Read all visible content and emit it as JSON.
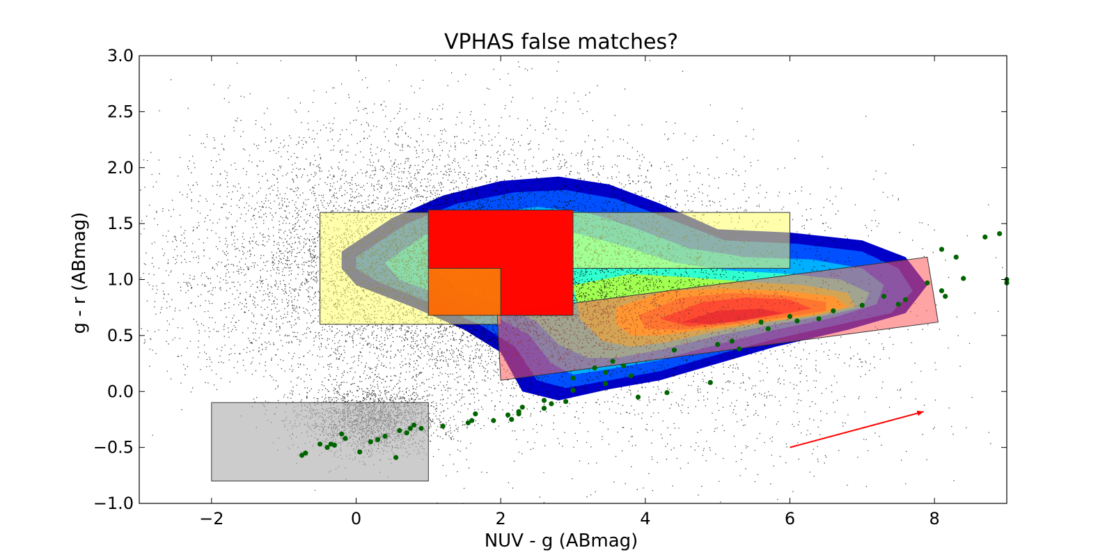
{
  "chart_data": {
    "type": "scatter",
    "title": "VPHAS false matches?",
    "xlabel": "NUV - g (ABmag)",
    "ylabel": "g - r (ABmag)",
    "xlim": [
      -3,
      9
    ],
    "ylim": [
      -1.0,
      3.0
    ],
    "xticks": [
      -2,
      0,
      2,
      4,
      6,
      8
    ],
    "xtick_labels": [
      "−2",
      "0",
      "2",
      "4",
      "6",
      "8"
    ],
    "yticks": [
      -1.0,
      -0.5,
      0.0,
      0.5,
      1.0,
      1.5,
      2.0,
      2.5,
      3.0
    ],
    "ytick_labels": [
      "−1.0",
      "−0.5",
      "0.0",
      "0.5",
      "1.0",
      "1.5",
      "2.0",
      "2.5",
      "3.0"
    ],
    "colors": {
      "background_points": "#000000",
      "highlight_points": "#006400",
      "arrow": "#ff0000",
      "yellow_box": "#ffff66",
      "gray_box": "#b0b0b0",
      "pink_box": "#ff5a5a",
      "orange_box": "#ff6a00",
      "red_box": "#ff0000"
    },
    "contour_levels": [
      {
        "color": "#0000c8",
        "points": [
          [
            -0.2,
            1.25
          ],
          [
            0.5,
            1.55
          ],
          [
            1.2,
            1.75
          ],
          [
            2.0,
            1.88
          ],
          [
            2.8,
            1.92
          ],
          [
            3.5,
            1.85
          ],
          [
            4.2,
            1.68
          ],
          [
            5.0,
            1.45
          ],
          [
            6.0,
            1.42
          ],
          [
            7.0,
            1.35
          ],
          [
            7.6,
            1.2
          ],
          [
            7.9,
            0.95
          ],
          [
            7.6,
            0.7
          ],
          [
            6.8,
            0.55
          ],
          [
            5.8,
            0.4
          ],
          [
            5.0,
            0.25
          ],
          [
            4.2,
            0.1
          ],
          [
            3.5,
            0.02
          ],
          [
            2.8,
            -0.08
          ],
          [
            2.3,
            0.0
          ],
          [
            2.0,
            0.35
          ],
          [
            1.5,
            0.55
          ],
          [
            0.8,
            0.75
          ],
          [
            0.0,
            0.95
          ],
          [
            -0.2,
            1.1
          ]
        ]
      },
      {
        "color": "#0050ff",
        "points": [
          [
            0.0,
            1.2
          ],
          [
            0.7,
            1.5
          ],
          [
            1.4,
            1.68
          ],
          [
            2.2,
            1.78
          ],
          [
            2.9,
            1.8
          ],
          [
            3.6,
            1.72
          ],
          [
            4.3,
            1.55
          ],
          [
            5.1,
            1.35
          ],
          [
            6.1,
            1.32
          ],
          [
            7.0,
            1.25
          ],
          [
            7.5,
            1.1
          ],
          [
            7.7,
            0.9
          ],
          [
            7.4,
            0.7
          ],
          [
            6.7,
            0.6
          ],
          [
            5.8,
            0.47
          ],
          [
            5.0,
            0.33
          ],
          [
            4.2,
            0.18
          ],
          [
            3.5,
            0.1
          ],
          [
            2.9,
            0.03
          ],
          [
            2.5,
            0.1
          ],
          [
            2.2,
            0.4
          ],
          [
            1.7,
            0.6
          ],
          [
            1.0,
            0.8
          ],
          [
            0.3,
            0.98
          ],
          [
            0.0,
            1.1
          ]
        ]
      },
      {
        "color": "#00b0ff",
        "points": [
          [
            0.4,
            1.15
          ],
          [
            1.0,
            1.42
          ],
          [
            1.7,
            1.58
          ],
          [
            2.5,
            1.65
          ],
          [
            3.2,
            1.6
          ],
          [
            3.9,
            1.45
          ],
          [
            4.6,
            1.28
          ],
          [
            5.4,
            1.2
          ],
          [
            6.3,
            1.18
          ],
          [
            7.0,
            1.1
          ],
          [
            7.3,
            0.95
          ],
          [
            7.2,
            0.78
          ],
          [
            6.6,
            0.66
          ],
          [
            5.8,
            0.55
          ],
          [
            5.0,
            0.42
          ],
          [
            4.2,
            0.28
          ],
          [
            3.5,
            0.2
          ],
          [
            3.0,
            0.15
          ],
          [
            2.7,
            0.25
          ],
          [
            2.4,
            0.5
          ],
          [
            1.9,
            0.68
          ],
          [
            1.2,
            0.85
          ],
          [
            0.6,
            1.0
          ]
        ]
      },
      {
        "color": "#30ffd0",
        "points": [
          [
            1.0,
            1.12
          ],
          [
            1.6,
            1.35
          ],
          [
            2.3,
            1.45
          ],
          [
            3.0,
            1.42
          ],
          [
            3.7,
            1.3
          ],
          [
            4.4,
            1.15
          ],
          [
            5.2,
            1.08
          ],
          [
            6.0,
            1.05
          ],
          [
            6.7,
            1.0
          ],
          [
            7.1,
            0.88
          ],
          [
            7.0,
            0.75
          ],
          [
            6.5,
            0.68
          ],
          [
            5.8,
            0.6
          ],
          [
            5.0,
            0.5
          ],
          [
            4.2,
            0.37
          ],
          [
            3.6,
            0.3
          ],
          [
            3.2,
            0.3
          ],
          [
            2.8,
            0.42
          ],
          [
            2.5,
            0.62
          ],
          [
            2.0,
            0.78
          ],
          [
            1.4,
            0.92
          ]
        ]
      },
      {
        "color": "#a0ff50",
        "points": [
          [
            3.0,
            0.95
          ],
          [
            3.8,
            1.05
          ],
          [
            4.6,
            1.02
          ],
          [
            5.4,
            0.98
          ],
          [
            6.2,
            0.95
          ],
          [
            6.8,
            0.88
          ],
          [
            6.9,
            0.76
          ],
          [
            6.4,
            0.68
          ],
          [
            5.7,
            0.62
          ],
          [
            5.0,
            0.54
          ],
          [
            4.3,
            0.44
          ],
          [
            3.8,
            0.4
          ],
          [
            3.4,
            0.45
          ],
          [
            3.1,
            0.65
          ]
        ]
      },
      {
        "color": "#ffe000",
        "points": [
          [
            3.6,
            0.75
          ],
          [
            4.3,
            0.9
          ],
          [
            5.1,
            0.92
          ],
          [
            5.9,
            0.9
          ],
          [
            6.6,
            0.85
          ],
          [
            6.8,
            0.76
          ],
          [
            6.3,
            0.68
          ],
          [
            5.6,
            0.62
          ],
          [
            4.9,
            0.56
          ],
          [
            4.2,
            0.5
          ],
          [
            3.8,
            0.5
          ],
          [
            3.6,
            0.6
          ]
        ]
      },
      {
        "color": "#ff9a00",
        "points": [
          [
            3.9,
            0.68
          ],
          [
            4.5,
            0.84
          ],
          [
            5.2,
            0.88
          ],
          [
            5.9,
            0.86
          ],
          [
            6.5,
            0.8
          ],
          [
            6.5,
            0.72
          ],
          [
            5.9,
            0.66
          ],
          [
            5.2,
            0.6
          ],
          [
            4.5,
            0.55
          ],
          [
            4.0,
            0.56
          ]
        ]
      },
      {
        "color": "#ff3a00",
        "points": [
          [
            4.2,
            0.65
          ],
          [
            4.8,
            0.8
          ],
          [
            5.4,
            0.84
          ],
          [
            6.0,
            0.82
          ],
          [
            6.3,
            0.74
          ],
          [
            5.8,
            0.68
          ],
          [
            5.2,
            0.62
          ],
          [
            4.6,
            0.58
          ]
        ]
      },
      {
        "color": "#d80000",
        "points": [
          [
            4.5,
            0.62
          ],
          [
            5.0,
            0.72
          ],
          [
            5.6,
            0.74
          ],
          [
            5.9,
            0.7
          ],
          [
            5.4,
            0.64
          ],
          [
            4.9,
            0.6
          ]
        ]
      }
    ],
    "regions": [
      {
        "name": "yellow-region",
        "color": "#ffff66",
        "opacity": 0.55,
        "polygon": [
          [
            -0.5,
            0.6
          ],
          [
            2.0,
            0.6
          ],
          [
            2.0,
            1.1
          ],
          [
            6.0,
            1.1
          ],
          [
            6.0,
            1.6
          ],
          [
            -0.5,
            1.6
          ]
        ]
      },
      {
        "name": "pink-region",
        "color": "#ff5a5a",
        "opacity": 0.55,
        "polygon": [
          [
            1.95,
            0.7
          ],
          [
            7.9,
            1.2
          ],
          [
            8.05,
            0.62
          ],
          [
            2.0,
            0.1
          ]
        ]
      },
      {
        "name": "gray-region",
        "color": "#b0b0b0",
        "opacity": 0.65,
        "polygon": [
          [
            -2.0,
            -0.8
          ],
          [
            1.0,
            -0.8
          ],
          [
            1.0,
            -0.1
          ],
          [
            -2.0,
            -0.1
          ]
        ]
      },
      {
        "name": "orange-region",
        "color": "#ff6a00",
        "opacity": 0.95,
        "polygon": [
          [
            1.0,
            0.68
          ],
          [
            3.0,
            0.68
          ],
          [
            3.0,
            1.62
          ],
          [
            1.0,
            1.62
          ]
        ]
      },
      {
        "name": "red-region",
        "color": "#ff0000",
        "opacity": 0.95,
        "polygon": [
          [
            2.0,
            0.68
          ],
          [
            3.0,
            0.68
          ],
          [
            3.0,
            1.62
          ],
          [
            1.0,
            1.62
          ],
          [
            1.0,
            1.1
          ],
          [
            2.0,
            1.1
          ]
        ]
      }
    ],
    "arrow": {
      "from": [
        6.0,
        -0.5
      ],
      "to": [
        7.85,
        -0.18
      ]
    },
    "background_distribution": {
      "n_points": 15000,
      "components": [
        {
          "weight": 0.55,
          "mean": [
            1.8,
            1.0
          ],
          "sd": [
            1.9,
            0.5
          ]
        },
        {
          "weight": 0.15,
          "mean": [
            0.2,
            -0.25
          ],
          "sd": [
            0.5,
            0.15
          ]
        },
        {
          "weight": 0.2,
          "mean": [
            0.5,
            1.4
          ],
          "sd": [
            1.6,
            0.6
          ]
        },
        {
          "weight": 0.1,
          "mean": [
            4.5,
            0.5
          ],
          "sd": [
            1.8,
            0.7
          ]
        }
      ]
    },
    "highlight_points": [
      [
        -0.75,
        -0.57
      ],
      [
        -0.7,
        -0.55
      ],
      [
        -0.5,
        -0.47
      ],
      [
        -0.4,
        -0.5
      ],
      [
        -0.35,
        -0.47
      ],
      [
        -0.3,
        -0.48
      ],
      [
        -0.2,
        -0.38
      ],
      [
        -0.15,
        -0.42
      ],
      [
        0.05,
        -0.54
      ],
      [
        0.2,
        -0.45
      ],
      [
        0.3,
        -0.43
      ],
      [
        0.4,
        -0.4
      ],
      [
        0.55,
        -0.59
      ],
      [
        0.6,
        -0.35
      ],
      [
        0.7,
        -0.37
      ],
      [
        0.75,
        -0.33
      ],
      [
        0.8,
        -0.3
      ],
      [
        0.9,
        -0.33
      ],
      [
        1.2,
        -0.31
      ],
      [
        1.55,
        -0.28
      ],
      [
        1.6,
        -0.26
      ],
      [
        1.65,
        -0.2
      ],
      [
        1.9,
        -0.26
      ],
      [
        2.1,
        -0.21
      ],
      [
        2.15,
        -0.25
      ],
      [
        2.25,
        -0.18
      ],
      [
        2.25,
        -0.2
      ],
      [
        2.3,
        -0.14
      ],
      [
        2.6,
        -0.15
      ],
      [
        2.6,
        -0.08
      ],
      [
        2.7,
        -0.11
      ],
      [
        2.9,
        -0.09
      ],
      [
        3.0,
        0.01
      ],
      [
        3.3,
        0.21
      ],
      [
        3.45,
        0.17
      ],
      [
        3.45,
        0.07
      ],
      [
        3.55,
        0.27
      ],
      [
        3.7,
        0.23
      ],
      [
        3.8,
        0.14
      ],
      [
        3.9,
        -0.05
      ],
      [
        4.3,
        -0.01
      ],
      [
        4.9,
        0.08
      ],
      [
        5.0,
        0.42
      ],
      [
        5.2,
        0.45
      ],
      [
        5.3,
        0.38
      ],
      [
        5.6,
        0.62
      ],
      [
        5.7,
        0.56
      ],
      [
        6.1,
        0.63
      ],
      [
        6.4,
        0.65
      ],
      [
        6.6,
        0.72
      ],
      [
        7.0,
        0.77
      ],
      [
        7.3,
        0.85
      ],
      [
        7.6,
        0.82
      ],
      [
        7.9,
        0.97
      ],
      [
        8.1,
        0.9
      ],
      [
        8.15,
        0.85
      ],
      [
        8.1,
        1.27
      ],
      [
        8.3,
        1.2
      ],
      [
        8.4,
        1.01
      ],
      [
        8.7,
        1.38
      ],
      [
        8.9,
        1.41
      ],
      [
        9.0,
        1.0
      ],
      [
        9.0,
        0.97
      ],
      [
        7.5,
        0.78
      ],
      [
        6.0,
        0.67
      ],
      [
        4.4,
        0.37
      ],
      [
        3.0,
        0.12
      ]
    ]
  }
}
